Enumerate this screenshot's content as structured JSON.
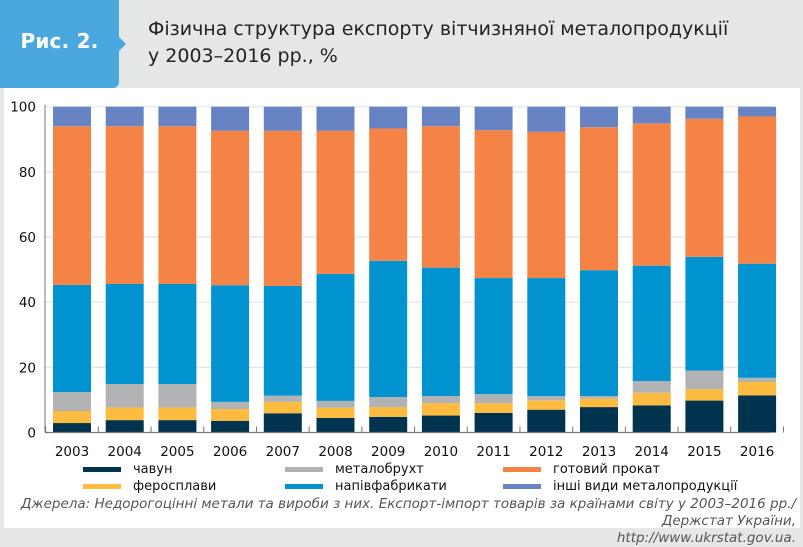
{
  "header": {
    "figure_label": "Рис. 2.",
    "title_line1": "Фізична структура експорту вітчизняної металопродукції",
    "title_line2": "у 2003–2016 рр., %"
  },
  "source": {
    "line1": "Джерела: Недорогоцінні метали та вироби з них. Експорт-імпорт товарів за країнами світу у 2003–2016 рр./ Держстат України,",
    "line2": "http://www.ukrstat.gov.ua."
  },
  "chart_data": {
    "type": "bar",
    "stacked": true,
    "title": "Фізична структура експорту вітчизняної металопродукції у 2003–2016 рр., %",
    "xlabel": "",
    "ylabel": "",
    "ylim": [
      0,
      100
    ],
    "yticks": [
      0,
      20,
      40,
      60,
      80,
      100
    ],
    "grid": true,
    "legend_position": "bottom",
    "categories": [
      "2003",
      "2004",
      "2005",
      "2006",
      "2007",
      "2008",
      "2009",
      "2010",
      "2011",
      "2012",
      "2013",
      "2014",
      "2015",
      "2016"
    ],
    "series": [
      {
        "name": "чавун",
        "color": "#00334e",
        "values": [
          2.9,
          3.8,
          3.8,
          3.6,
          5.9,
          4.5,
          4.8,
          5.2,
          6.0,
          7.0,
          7.8,
          8.3,
          9.8,
          11.4
        ]
      },
      {
        "name": "феросплави",
        "color": "#fdbb3f",
        "values": [
          3.7,
          3.9,
          3.9,
          3.6,
          3.5,
          3.1,
          3.0,
          3.8,
          3.0,
          2.9,
          2.6,
          3.9,
          3.5,
          4.1
        ]
      },
      {
        "name": "металобрухт",
        "color": "#b1b2b4",
        "values": [
          5.8,
          7.2,
          7.2,
          2.2,
          1.9,
          2.1,
          3.1,
          2.2,
          2.8,
          1.3,
          0.8,
          3.6,
          5.7,
          1.3
        ]
      },
      {
        "name": "напівфабрикати",
        "color": "#0093d0",
        "values": [
          32.9,
          30.7,
          30.7,
          35.8,
          33.7,
          39.0,
          41.8,
          39.4,
          35.6,
          36.2,
          38.6,
          35.4,
          34.9,
          35.0
        ]
      },
      {
        "name": "готовий прокат",
        "color": "#f58345",
        "values": [
          48.7,
          48.4,
          48.4,
          47.4,
          47.6,
          43.9,
          40.6,
          43.4,
          45.4,
          44.9,
          43.9,
          43.7,
          42.4,
          45.2
        ]
      },
      {
        "name": "інші види металопродукції",
        "color": "#6783c3",
        "values": [
          6.0,
          6.0,
          6.0,
          7.4,
          7.4,
          7.4,
          6.7,
          6.0,
          7.2,
          7.7,
          6.3,
          5.1,
          3.7,
          3.0
        ]
      }
    ],
    "legend_order": [
      "чавун",
      "металобрухт",
      "готовий прокат",
      "феросплави",
      "напівфабрикати",
      "інші види металопродукції"
    ]
  }
}
